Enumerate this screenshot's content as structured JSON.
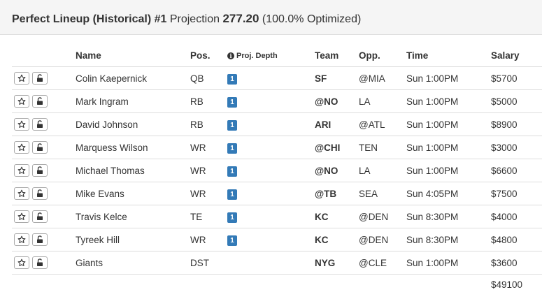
{
  "header": {
    "title": "Perfect Lineup (Historical) #1",
    "projection_label": "Projection",
    "projection_value": "277.20",
    "optimized": "(100.0% Optimized)"
  },
  "columns": {
    "name": "Name",
    "pos": "Pos.",
    "depth": "Proj. Depth",
    "team": "Team",
    "opp": "Opp.",
    "time": "Time",
    "salary": "Salary"
  },
  "players": [
    {
      "name": "Colin Kaepernick",
      "pos": "QB",
      "depth": "1",
      "team": "SF",
      "opp": "@MIA",
      "time": "Sun 1:00PM",
      "salary": "$5700"
    },
    {
      "name": "Mark Ingram",
      "pos": "RB",
      "depth": "1",
      "team": "@NO",
      "opp": "LA",
      "time": "Sun 1:00PM",
      "salary": "$5000"
    },
    {
      "name": "David Johnson",
      "pos": "RB",
      "depth": "1",
      "team": "ARI",
      "opp": "@ATL",
      "time": "Sun 1:00PM",
      "salary": "$8900"
    },
    {
      "name": "Marquess Wilson",
      "pos": "WR",
      "depth": "1",
      "team": "@CHI",
      "opp": "TEN",
      "time": "Sun 1:00PM",
      "salary": "$3000"
    },
    {
      "name": "Michael Thomas",
      "pos": "WR",
      "depth": "1",
      "team": "@NO",
      "opp": "LA",
      "time": "Sun 1:00PM",
      "salary": "$6600"
    },
    {
      "name": "Mike Evans",
      "pos": "WR",
      "depth": "1",
      "team": "@TB",
      "opp": "SEA",
      "time": "Sun 4:05PM",
      "salary": "$7500"
    },
    {
      "name": "Travis Kelce",
      "pos": "TE",
      "depth": "1",
      "team": "KC",
      "opp": "@DEN",
      "time": "Sun 8:30PM",
      "salary": "$4000"
    },
    {
      "name": "Tyreek Hill",
      "pos": "WR",
      "depth": "1",
      "team": "KC",
      "opp": "@DEN",
      "time": "Sun 8:30PM",
      "salary": "$4800"
    },
    {
      "name": "Giants",
      "pos": "DST",
      "depth": "",
      "team": "NYG",
      "opp": "@CLE",
      "time": "Sun 1:00PM",
      "salary": "$3600"
    }
  ],
  "total_salary": "$49100",
  "icons": {
    "row_actions": [
      "star-icon",
      "lock-icon"
    ],
    "depth_header": "info-icon"
  },
  "colors": {
    "depth_badge": "#337ab7",
    "heading_bg": "#f5f5f5"
  }
}
